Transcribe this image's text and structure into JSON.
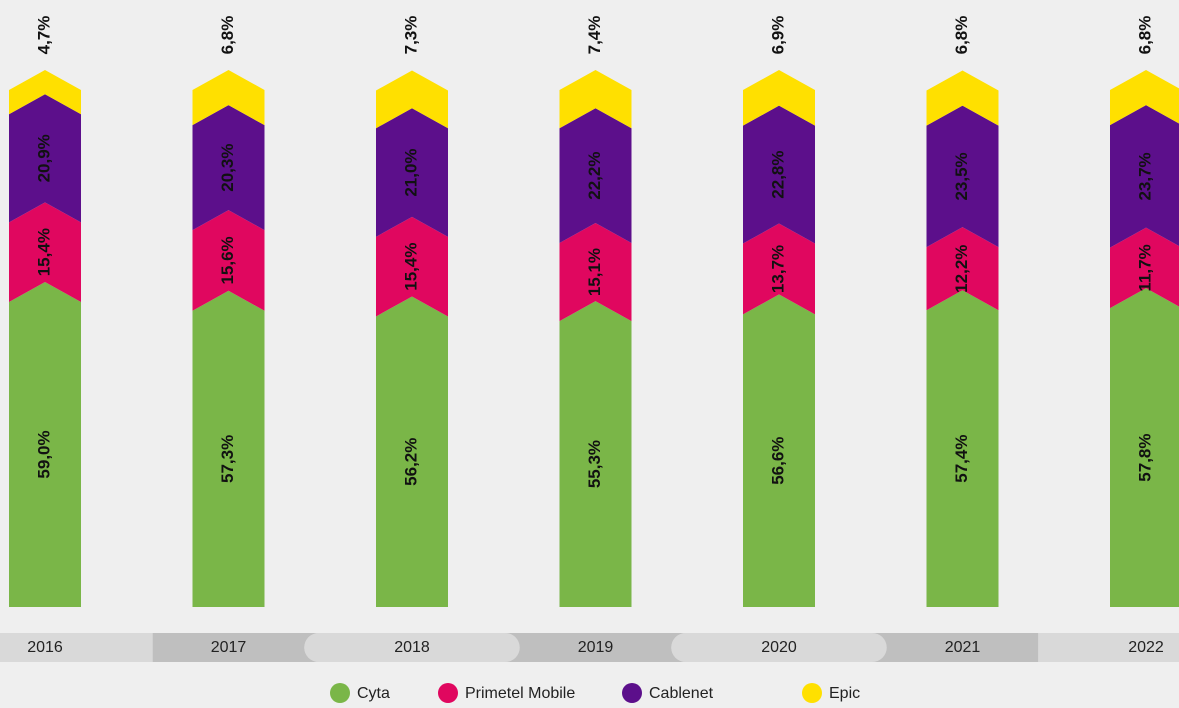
{
  "chart_data": {
    "type": "stacked-bar",
    "categories": [
      "2016",
      "2017",
      "2018",
      "2019",
      "2020",
      "2021",
      "2022"
    ],
    "ylim": [
      0,
      100
    ],
    "series": [
      {
        "name": "Cyta",
        "color": "#7ab648",
        "values": [
          59.0,
          57.3,
          56.2,
          55.3,
          56.6,
          57.4,
          57.8
        ],
        "value_labels": [
          "59,0%",
          "57,3%",
          "56,2%",
          "55,3%",
          "56,6%",
          "57,4%",
          "57,8%"
        ]
      },
      {
        "name": "Primetel Mobile",
        "color": "#e0075f",
        "values": [
          15.4,
          15.6,
          15.4,
          15.1,
          13.7,
          12.2,
          11.7
        ],
        "value_labels": [
          "15,4%",
          "15,6%",
          "15,4%",
          "15,1%",
          "13,7%",
          "12,2%",
          "11,7%"
        ]
      },
      {
        "name": "Cablenet",
        "color": "#5c0f8b",
        "values": [
          20.9,
          20.3,
          21.0,
          22.2,
          22.8,
          23.5,
          23.7
        ],
        "value_labels": [
          "20,9%",
          "20,3%",
          "21,0%",
          "22,2%",
          "22,8%",
          "23,5%",
          "23,7%"
        ]
      },
      {
        "name": "Epic",
        "color": "#ffe000",
        "values": [
          4.7,
          6.8,
          7.3,
          7.4,
          6.9,
          6.8,
          6.8
        ],
        "value_labels": [
          "4,7%",
          "6,8%",
          "7,3%",
          "7,4%",
          "6,9%",
          "6,8%",
          "6,8%"
        ]
      }
    ]
  }
}
